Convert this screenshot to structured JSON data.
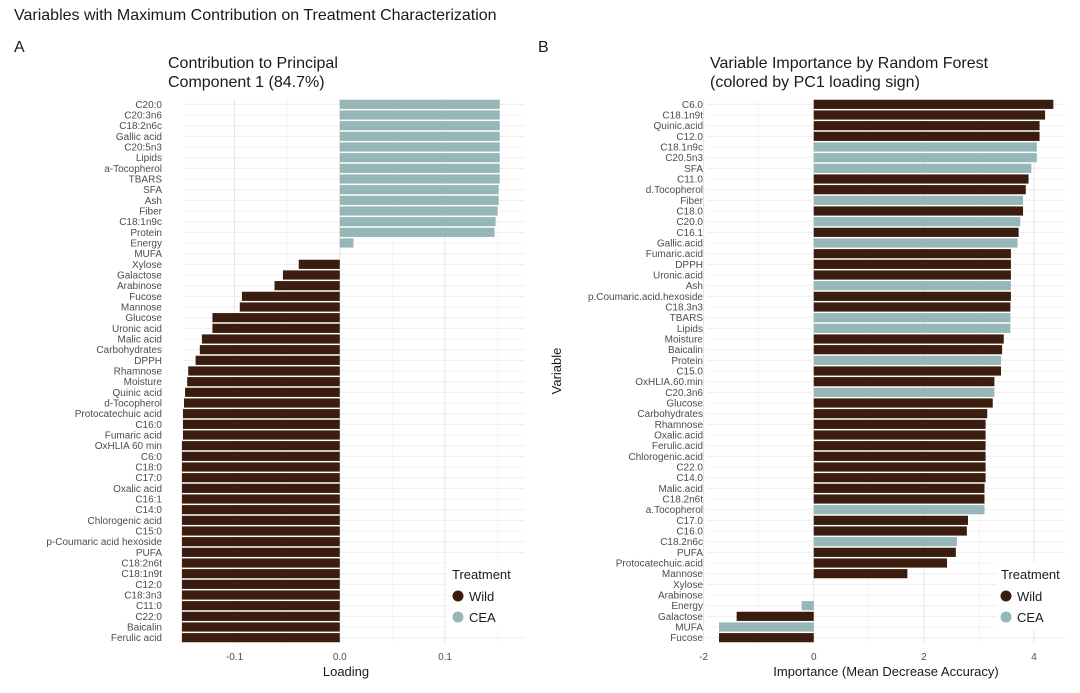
{
  "page_title": "Variables with Maximum Contribution on Treatment Characterization",
  "colors": {
    "Wild": "#3b1d0f",
    "CEA": "#96b7b8"
  },
  "chart_data": [
    {
      "type": "bar",
      "orientation": "horizontal",
      "panel_tag": "A",
      "title": [
        "Contribution to Principal",
        "Component 1 (84.7%)"
      ],
      "xlabel": "Loading",
      "ylabel": "",
      "xlim": [
        -0.148,
        0.175
      ],
      "xticks": [
        -0.1,
        0.0,
        0.1
      ],
      "xtick_labels": [
        "-0.1",
        "0.0",
        "0.1"
      ],
      "grid": true,
      "legend": {
        "title": "Treatment",
        "entries": [
          "Wild",
          "CEA"
        ],
        "position": "bottom-right"
      },
      "categories": [
        "C20:0",
        "C20:3n6",
        "C18:2n6c",
        "Gallic acid",
        "C20:5n3",
        "Lipids",
        "a-Tocopherol",
        "TBARS",
        "SFA",
        "Ash",
        "Fiber",
        "C18:1n9c",
        "Protein",
        "Energy",
        "MUFA",
        "Xylose",
        "Galactose",
        "Arabinose",
        "Fucose",
        "Mannose",
        "Glucose",
        "Uronic acid",
        "Malic acid",
        "Carbohydrates",
        "DPPH",
        "Rhamnose",
        "Moisture",
        "Quinic acid",
        "d-Tocopherol",
        "Protocatechuic acid",
        "C16:0",
        "Fumaric acid",
        "OxHLIA 60 min",
        "C6:0",
        "C18:0",
        "C17:0",
        "Oxalic acid",
        "C16:1",
        "C14:0",
        "Chlorogenic acid",
        "C15:0",
        "p-Coumaric acid hexoside",
        "PUFA",
        "C18:2n6t",
        "C18:1n9t",
        "C12:0",
        "C18:3n3",
        "C11:0",
        "C22:0",
        "Baicalin",
        "Ferulic acid"
      ],
      "values": [
        0.152,
        0.152,
        0.152,
        0.152,
        0.152,
        0.152,
        0.152,
        0.152,
        0.151,
        0.151,
        0.15,
        0.148,
        0.147,
        0.013,
        0.0,
        -0.039,
        -0.054,
        -0.062,
        -0.093,
        -0.095,
        -0.121,
        -0.121,
        -0.131,
        -0.133,
        -0.137,
        -0.144,
        -0.145,
        -0.147,
        -0.148,
        -0.149,
        -0.149,
        -0.149,
        -0.15,
        -0.15,
        -0.15,
        -0.15,
        -0.15,
        -0.15,
        -0.15,
        -0.15,
        -0.15,
        -0.15,
        -0.15,
        -0.15,
        -0.15,
        -0.15,
        -0.15,
        -0.15,
        -0.15,
        -0.15,
        -0.15
      ],
      "treatment": [
        "CEA",
        "CEA",
        "CEA",
        "CEA",
        "CEA",
        "CEA",
        "CEA",
        "CEA",
        "CEA",
        "CEA",
        "CEA",
        "CEA",
        "CEA",
        "CEA",
        "CEA",
        "Wild",
        "Wild",
        "Wild",
        "Wild",
        "Wild",
        "Wild",
        "Wild",
        "Wild",
        "Wild",
        "Wild",
        "Wild",
        "Wild",
        "Wild",
        "Wild",
        "Wild",
        "Wild",
        "Wild",
        "Wild",
        "Wild",
        "Wild",
        "Wild",
        "Wild",
        "Wild",
        "Wild",
        "Wild",
        "Wild",
        "Wild",
        "Wild",
        "Wild",
        "Wild",
        "Wild",
        "Wild",
        "Wild",
        "Wild",
        "Wild",
        "Wild"
      ]
    },
    {
      "type": "bar",
      "orientation": "horizontal",
      "panel_tag": "B",
      "title": [
        "Variable Importance by Random Forest",
        "(colored by PC1 loading sign)"
      ],
      "xlabel": "Importance (Mean Decrease Accuracy)",
      "ylabel": "Variable",
      "xlim": [
        -1.92,
        4.58
      ],
      "xticks": [
        -2,
        0,
        2,
        4
      ],
      "xtick_labels": [
        "-2",
        "0",
        "2",
        "4"
      ],
      "grid": true,
      "legend": {
        "title": "Treatment",
        "entries": [
          "Wild",
          "CEA"
        ],
        "position": "bottom-right"
      },
      "categories": [
        "C6.0",
        "C18.1n9t",
        "Quinic.acid",
        "C12.0",
        "C18.1n9c",
        "C20.5n3",
        "SFA",
        "C11.0",
        "d.Tocopherol",
        "Fiber",
        "C18.0",
        "C20.0",
        "C16.1",
        "Gallic.acid",
        "Fumaric.acid",
        "DPPH",
        "Uronic.acid",
        "Ash",
        "p.Coumaric.acid.hexoside",
        "C18.3n3",
        "TBARS",
        "Lipids",
        "Moisture",
        "Baicalin",
        "Protein",
        "C15.0",
        "OxHLIA.60.min",
        "C20.3n6",
        "Glucose",
        "Carbohydrates",
        "Rhamnose",
        "Oxalic.acid",
        "Ferulic.acid",
        "Chlorogenic.acid",
        "C22.0",
        "C14.0",
        "Malic.acid",
        "C18.2n6t",
        "a.Tocopherol",
        "C17.0",
        "C16.0",
        "C18.2n6c",
        "PUFA",
        "Protocatechuic.acid",
        "Mannose",
        "Xylose",
        "Arabinose",
        "Energy",
        "Galactose",
        "MUFA",
        "Fucose"
      ],
      "values": [
        4.35,
        4.2,
        4.1,
        4.1,
        4.05,
        4.05,
        3.95,
        3.9,
        3.85,
        3.8,
        3.8,
        3.75,
        3.72,
        3.7,
        3.58,
        3.58,
        3.58,
        3.58,
        3.58,
        3.57,
        3.57,
        3.57,
        3.45,
        3.42,
        3.4,
        3.4,
        3.28,
        3.28,
        3.25,
        3.15,
        3.12,
        3.12,
        3.12,
        3.12,
        3.12,
        3.12,
        3.1,
        3.1,
        3.1,
        2.8,
        2.78,
        2.6,
        2.58,
        2.42,
        1.7,
        0.0,
        0.0,
        -0.22,
        -1.4,
        -1.72,
        -1.72
      ],
      "treatment": [
        "Wild",
        "Wild",
        "Wild",
        "Wild",
        "CEA",
        "CEA",
        "CEA",
        "Wild",
        "Wild",
        "CEA",
        "Wild",
        "CEA",
        "Wild",
        "CEA",
        "Wild",
        "Wild",
        "Wild",
        "CEA",
        "Wild",
        "Wild",
        "CEA",
        "CEA",
        "Wild",
        "Wild",
        "CEA",
        "Wild",
        "Wild",
        "CEA",
        "Wild",
        "Wild",
        "Wild",
        "Wild",
        "Wild",
        "Wild",
        "Wild",
        "Wild",
        "Wild",
        "Wild",
        "CEA",
        "Wild",
        "Wild",
        "CEA",
        "Wild",
        "Wild",
        "Wild",
        "Wild",
        "Wild",
        "CEA",
        "Wild",
        "CEA",
        "Wild"
      ]
    }
  ]
}
